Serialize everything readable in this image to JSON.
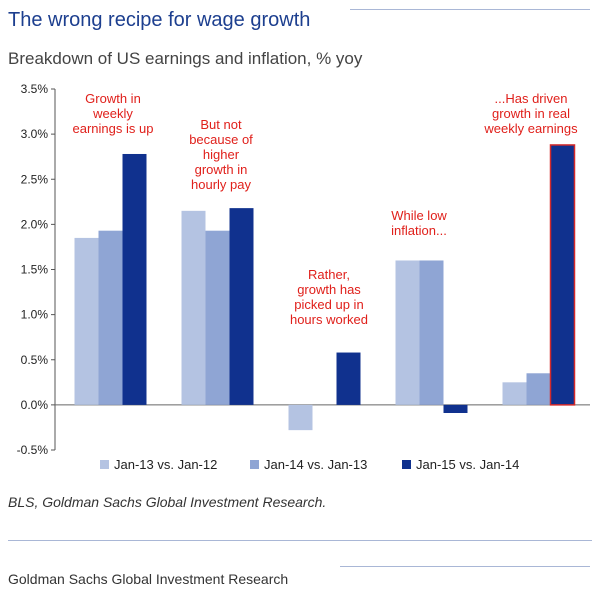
{
  "header": {
    "title": "The wrong recipe for wage growth",
    "subtitle": "Breakdown of US earnings and inflation, % yoy"
  },
  "source": "BLS, Goldman Sachs Global Investment Research.",
  "footer": "Goldman Sachs Global Investment Research",
  "chart_data": {
    "type": "bar",
    "title": "",
    "xlabel": "",
    "ylabel": "",
    "ylim": [
      -0.5,
      3.5
    ],
    "yticks": [
      "3.5%",
      "3.0%",
      "2.5%",
      "2.0%",
      "1.5%",
      "1.0%",
      "0.5%",
      "0.0%",
      "-0.5%"
    ],
    "grid": false,
    "legend_position": "bottom",
    "categories": [
      "",
      "",
      "",
      "",
      ""
    ],
    "series": [
      {
        "name": "Jan-13 vs. Jan-12",
        "color": "#b4c3e2",
        "values": [
          1.85,
          2.15,
          -0.28,
          1.6,
          0.25
        ]
      },
      {
        "name": "Jan-14 vs. Jan-13",
        "color": "#8fa5d4",
        "values": [
          1.93,
          1.93,
          null,
          1.6,
          0.35
        ]
      },
      {
        "name": "Jan-15 vs. Jan-14",
        "color": "#10318e",
        "values": [
          2.78,
          2.18,
          0.58,
          -0.09,
          2.88
        ]
      }
    ],
    "annotations": [
      {
        "lines": [
          "Growth in",
          "weekly",
          "earnings is up"
        ]
      },
      {
        "lines": [
          "But not",
          "because of",
          "higher",
          "growth in",
          "hourly pay"
        ]
      },
      {
        "lines": [
          "Rather,",
          "growth has",
          "picked up in",
          "hours worked"
        ]
      },
      {
        "lines": [
          "While low",
          "inflation..."
        ]
      },
      {
        "lines": [
          "...Has driven",
          "growth in real",
          "weekly earnings"
        ]
      }
    ],
    "highlight": {
      "series": 2,
      "category": 4,
      "color": "#d42a2a"
    },
    "annotation_color": "#e0201b"
  }
}
